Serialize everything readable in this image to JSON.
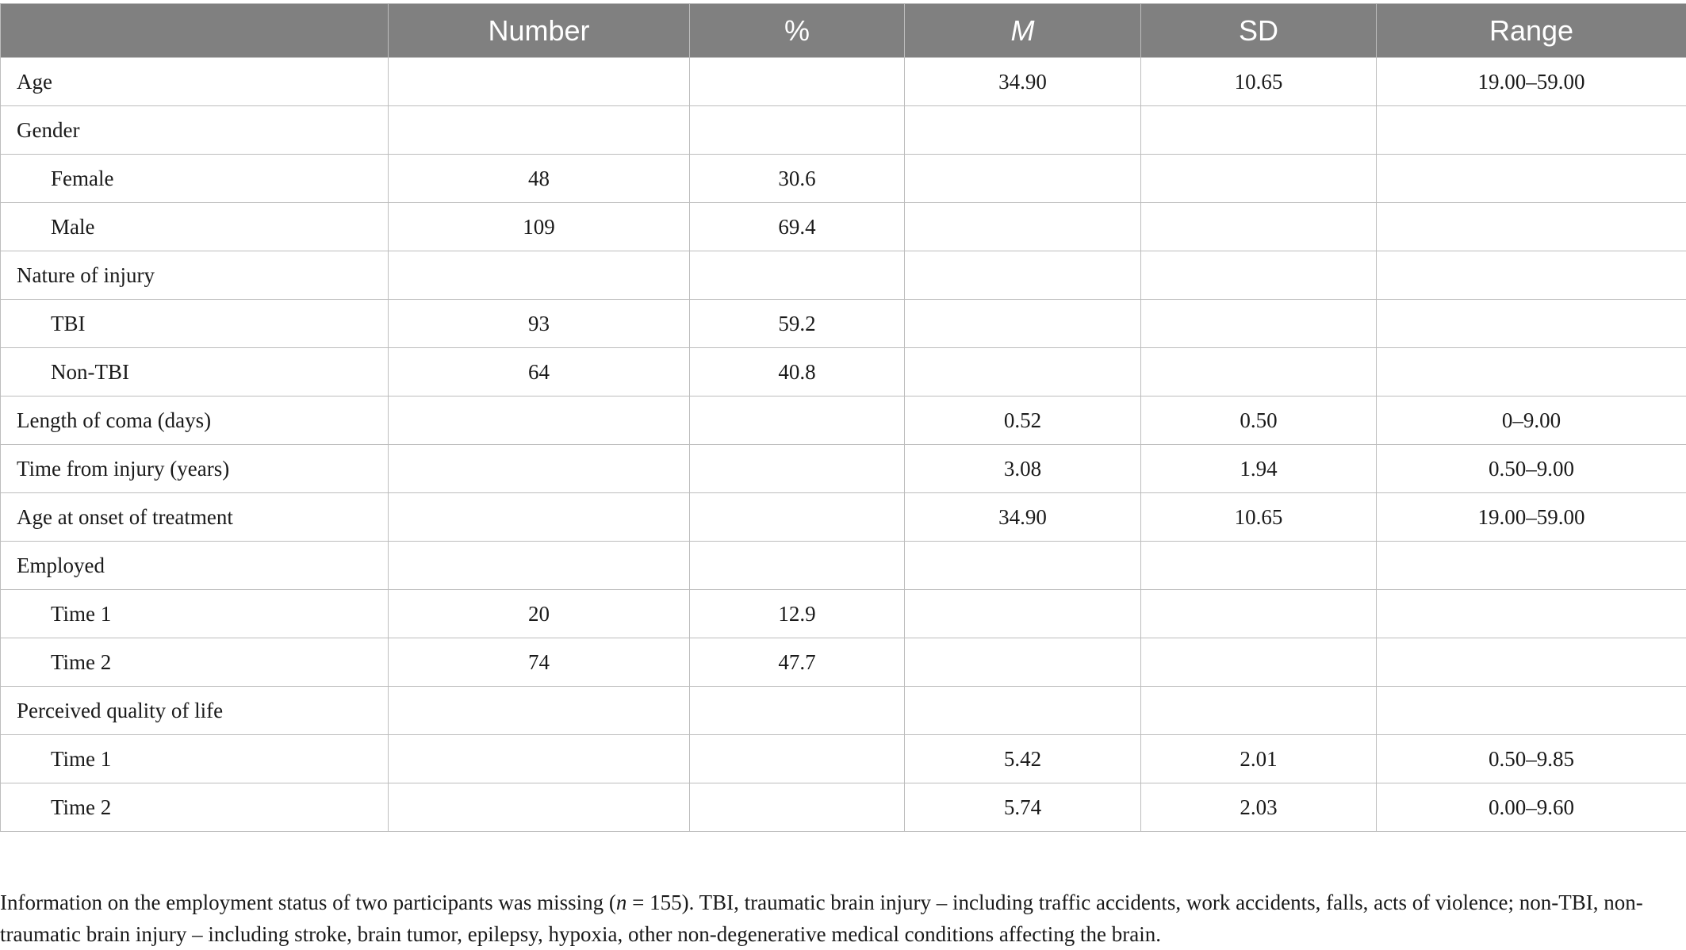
{
  "table": {
    "headers": [
      "",
      "Number",
      "%",
      "M",
      "SD",
      "Range"
    ],
    "rows": [
      {
        "label": "Age",
        "indent": false,
        "number": "",
        "percent": "",
        "m": "34.90",
        "sd": "10.65",
        "range": "19.00–59.00"
      },
      {
        "label": "Gender",
        "indent": false,
        "number": "",
        "percent": "",
        "m": "",
        "sd": "",
        "range": ""
      },
      {
        "label": "Female",
        "indent": true,
        "number": "48",
        "percent": "30.6",
        "m": "",
        "sd": "",
        "range": ""
      },
      {
        "label": "Male",
        "indent": true,
        "number": "109",
        "percent": "69.4",
        "m": "",
        "sd": "",
        "range": ""
      },
      {
        "label": "Nature of injury",
        "indent": false,
        "number": "",
        "percent": "",
        "m": "",
        "sd": "",
        "range": ""
      },
      {
        "label": "TBI",
        "indent": true,
        "number": "93",
        "percent": "59.2",
        "m": "",
        "sd": "",
        "range": ""
      },
      {
        "label": "Non-TBI",
        "indent": true,
        "number": "64",
        "percent": "40.8",
        "m": "",
        "sd": "",
        "range": ""
      },
      {
        "label": "Length of coma (days)",
        "indent": false,
        "number": "",
        "percent": "",
        "m": "0.52",
        "sd": "0.50",
        "range": "0–9.00"
      },
      {
        "label": "Time from injury (years)",
        "indent": false,
        "number": "",
        "percent": "",
        "m": "3.08",
        "sd": "1.94",
        "range": "0.50–9.00"
      },
      {
        "label": "Age at onset of treatment",
        "indent": false,
        "number": "",
        "percent": "",
        "m": "34.90",
        "sd": "10.65",
        "range": "19.00–59.00"
      },
      {
        "label": "Employed",
        "indent": false,
        "number": "",
        "percent": "",
        "m": "",
        "sd": "",
        "range": ""
      },
      {
        "label": "Time 1",
        "indent": true,
        "number": "20",
        "percent": "12.9",
        "m": "",
        "sd": "",
        "range": ""
      },
      {
        "label": "Time 2",
        "indent": true,
        "number": "74",
        "percent": "47.7",
        "m": "",
        "sd": "",
        "range": ""
      },
      {
        "label": "Perceived quality of life",
        "indent": false,
        "number": "",
        "percent": "",
        "m": "",
        "sd": "",
        "range": ""
      },
      {
        "label": "Time 1",
        "indent": true,
        "number": "",
        "percent": "",
        "m": "5.42",
        "sd": "2.01",
        "range": "0.50–9.85"
      },
      {
        "label": "Time 2",
        "indent": true,
        "number": "",
        "percent": "",
        "m": "5.74",
        "sd": "2.03",
        "range": "0.00–9.60"
      }
    ]
  },
  "footnote": {
    "before": "Information on the employment status of two participants was missing (",
    "n_symbol": "n",
    "n_value": " = 155). TBI, traumatic brain injury – including traffic accidents, work accidents, falls, acts of violence; non-TBI, non-traumatic brain injury – including stroke, brain tumor, epilepsy, hypoxia, other non-degenerative medical conditions affecting the brain."
  }
}
